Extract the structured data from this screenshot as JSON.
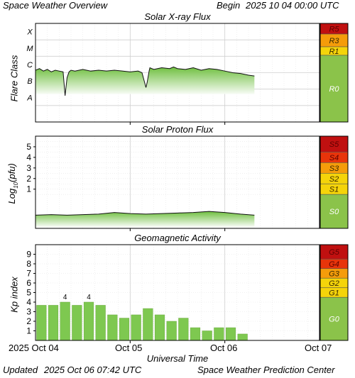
{
  "header": {
    "left": "Space Weather Overview",
    "begin_label": "Begin",
    "begin_value": "2025 10 04 00:00 UTC"
  },
  "footer": {
    "updated_label": "Updated",
    "updated_value": "2025 Oct 06 07:42 UTC",
    "center": "Space Weather Prediction Center"
  },
  "x_axis": {
    "title": "Universal Time",
    "start_label": "2025 Oct 04",
    "ticks": [
      "Oct 05",
      "Oct 06",
      "Oct 07"
    ],
    "range_hours": [
      0,
      72
    ]
  },
  "colors": {
    "fill": "#7ec850",
    "scale_green": "#8bc34a",
    "scale_yellow": "#f5d40a",
    "scale_orange": "#f59c0a",
    "scale_red": "#e8340a",
    "scale_darkred": "#c01010"
  },
  "chart_data": [
    {
      "type": "area",
      "title": "Solar X-ray Flux",
      "ylabel": "Flare Class",
      "y_classes": [
        "X",
        "M",
        "C",
        "B",
        "A"
      ],
      "ylim": [
        -9,
        -3
      ],
      "y_unit": "log10 W/m2",
      "x_hours": [
        0,
        1,
        2,
        3,
        4,
        5,
        6,
        7,
        7.5,
        8,
        8.5,
        9,
        10,
        12,
        14,
        16,
        18,
        20,
        22,
        24,
        26,
        27,
        28,
        28.3,
        28.8,
        29,
        30,
        32,
        34,
        35,
        36,
        38,
        40,
        42,
        44,
        46,
        48,
        50,
        52,
        54,
        55.5
      ],
      "values": [
        -5.85,
        -5.75,
        -5.9,
        -5.8,
        -5.95,
        -5.85,
        -5.9,
        -5.95,
        -7.4,
        -6.3,
        -5.95,
        -5.85,
        -5.9,
        -5.8,
        -5.9,
        -5.85,
        -5.9,
        -5.85,
        -5.9,
        -5.95,
        -5.9,
        -6.0,
        -6.9,
        -6.6,
        -5.9,
        -5.7,
        -5.8,
        -5.7,
        -5.75,
        -5.65,
        -5.75,
        -5.8,
        -5.7,
        -5.85,
        -5.75,
        -5.8,
        -5.9,
        -6.0,
        -6.05,
        -6.15,
        -6.2
      ],
      "scale": [
        {
          "label": "R5",
          "level": "X"
        },
        {
          "label": "R3",
          "level": "X"
        },
        {
          "label": "R1",
          "level": "M"
        },
        {
          "label": "R0",
          "level": "below M"
        }
      ]
    },
    {
      "type": "area",
      "title": "Solar Proton Flux",
      "ylabel": "Log₁₀(pfu)",
      "ylim": [
        -2.7,
        6
      ],
      "y_ticks": [
        1,
        2,
        3,
        4,
        5
      ],
      "x_hours": [
        0,
        4,
        8,
        12,
        16,
        20,
        24,
        28,
        32,
        36,
        40,
        44,
        48,
        52,
        55.5
      ],
      "values": [
        -1.45,
        -1.4,
        -1.45,
        -1.4,
        -1.35,
        -1.2,
        -1.3,
        -1.35,
        -1.3,
        -1.25,
        -1.2,
        -1.1,
        -1.2,
        -1.35,
        -1.45
      ],
      "scale": [
        "S5",
        "S4",
        "S3",
        "S2",
        "S1",
        "S0"
      ]
    },
    {
      "type": "bar",
      "title": "Geomagnetic Activity",
      "ylabel": "Kp index",
      "ylim": [
        0,
        10
      ],
      "y_ticks": [
        1,
        2,
        3,
        4,
        5,
        6,
        7,
        8,
        9
      ],
      "bar_width_hours": 3,
      "values": [
        3.67,
        3.67,
        4,
        3.67,
        4,
        3.67,
        2.67,
        2.33,
        2.67,
        3.33,
        2.67,
        2,
        2.33,
        1.33,
        1,
        1.33,
        1.33,
        0.67
      ],
      "data_labels": [
        {
          "index": 2,
          "text": "4"
        },
        {
          "index": 4,
          "text": "4"
        }
      ],
      "scale": [
        "G5",
        "G4",
        "G3",
        "G2",
        "G1",
        "G0"
      ]
    }
  ]
}
